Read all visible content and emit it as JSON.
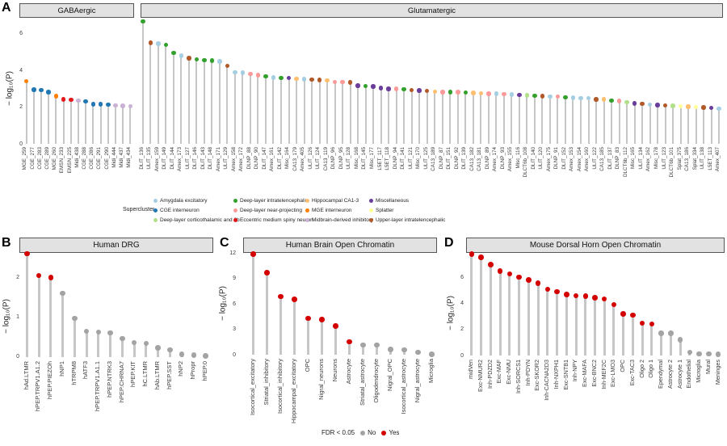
{
  "panels": {
    "A": {
      "letter": "A",
      "facet1": "GABAergic",
      "facet2": "Glutamatergic",
      "ylabel": "− log₁₀(P)"
    },
    "B": {
      "letter": "B",
      "title": "Human DRG",
      "ylabel": "− log₁₀(P)"
    },
    "C": {
      "letter": "C",
      "title": "Human Brain Open Chromatin",
      "ylabel": "− log₁₀(P)"
    },
    "D": {
      "letter": "D",
      "title": "Mouse Dorsal Horn Open Chromatin",
      "ylabel": "− log₁₀(P)"
    }
  },
  "supercluster_legend": {
    "title": "Supercluster",
    "entries": [
      {
        "label": "Amygdala excitatory",
        "color": "#a6cee3"
      },
      {
        "label": "CGE interneuron",
        "color": "#1f78b4"
      },
      {
        "label": "Deep-layer corticothalamic and 6b",
        "color": "#b2df8a"
      },
      {
        "label": "Deep-layer intratelencephalic",
        "color": "#33a02c"
      },
      {
        "label": "Deep-layer near-projecting",
        "color": "#fb9a99"
      },
      {
        "label": "Eccentric medium spiny neuron",
        "color": "#e31a1c"
      },
      {
        "label": "Hippocampal CA1-3",
        "color": "#fdbf6f"
      },
      {
        "label": "MGE interneuron",
        "color": "#ff7f00"
      },
      {
        "label": "Midbrain-derived inhibitory",
        "color": "#cab2d6"
      },
      {
        "label": "Miscellaneous",
        "color": "#6a3d9a"
      },
      {
        "label": "Splatter",
        "color": "#ffff99"
      },
      {
        "label": "Upper-layer intratelencephalic",
        "color": "#b15928"
      }
    ]
  },
  "fdr_legend": {
    "label": "FDR < 0.05",
    "no_label": "No",
    "yes_label": "Yes",
    "no_color": "#a3a3a3",
    "yes_color": "#d40000"
  },
  "chart_data": [
    {
      "id": "A",
      "type": "lollipop",
      "ylabel": "− log₁₀(P)",
      "yticks": [
        0,
        2,
        4,
        6
      ],
      "ylim": [
        0,
        7
      ],
      "grid": false,
      "point_columns": [
        "label",
        "value",
        "supercluster"
      ],
      "facets": [
        {
          "label": "GABAergic",
          "points": [
            [
              "MGE_259",
              3.42,
              "MGE interneuron"
            ],
            [
              "CGE_277",
              2.95,
              "CGE interneuron"
            ],
            [
              "CGE_283",
              2.94,
              "CGE interneuron"
            ],
            [
              "CGE_289",
              2.83,
              "CGE interneuron"
            ],
            [
              "MGE_260",
              2.6,
              "MGE interneuron"
            ],
            [
              "EMSN_233",
              2.43,
              "Eccentric medium spiny neuron"
            ],
            [
              "EMSN_225",
              2.4,
              "Eccentric medium spiny neuron"
            ],
            [
              "Midi_438",
              2.36,
              "Midbrain-derived inhibitory"
            ],
            [
              "CGE_288",
              2.31,
              "CGE interneuron"
            ],
            [
              "CGE_286",
              2.16,
              "CGE interneuron"
            ],
            [
              "CGE_291",
              2.15,
              "CGE interneuron"
            ],
            [
              "CGE_290",
              2.14,
              "CGE interneuron"
            ],
            [
              "Midi_444",
              2.09,
              "Midbrain-derived inhibitory"
            ],
            [
              "Midi_437",
              2.08,
              "Midbrain-derived inhibitory"
            ],
            [
              "Midi_434",
              2.04,
              "Midbrain-derived inhibitory"
            ]
          ]
        },
        {
          "label": "Glutamatergic",
          "points": [
            [
              "DLIT_136",
              6.68,
              "Deep-layer intratelencephalic"
            ],
            [
              "ULIT_135",
              5.5,
              "Upper-layer intratelencephalic"
            ],
            [
              "Amex_159",
              5.47,
              "Amygdala excitatory"
            ],
            [
              "DLIT_149",
              5.4,
              "Deep-layer intratelencephalic"
            ],
            [
              "DLIT_144",
              4.95,
              "Deep-layer intratelencephalic"
            ],
            [
              "Amex_173",
              4.8,
              "Amygdala excitatory"
            ],
            [
              "ULIT_127",
              4.66,
              "Upper-layer intratelencephalic"
            ],
            [
              "DLIT_146",
              4.6,
              "Deep-layer intratelencephalic"
            ],
            [
              "DLIT_143",
              4.56,
              "Deep-layer intratelencephalic"
            ],
            [
              "DLIT_148",
              4.53,
              "Deep-layer intratelencephalic"
            ],
            [
              "Amex_171",
              4.5,
              "Amygdala excitatory"
            ],
            [
              "ULIT_129",
              4.25,
              "Upper-layer intratelencephalic"
            ],
            [
              "Amex_158",
              3.9,
              "Amygdala excitatory"
            ],
            [
              "Amex_172",
              3.87,
              "Amygdala excitatory"
            ],
            [
              "DLNP_88",
              3.82,
              "Deep-layer near-projecting"
            ],
            [
              "DLNP_90",
              3.75,
              "Deep-layer near-projecting"
            ],
            [
              "DLIT_147",
              3.68,
              "Deep-layer intratelencephalic"
            ],
            [
              "Amex_161",
              3.62,
              "Amygdala excitatory"
            ],
            [
              "DLIT_142",
              3.6,
              "Deep-layer intratelencephalic"
            ],
            [
              "Misc_164",
              3.58,
              "Miscellaneous"
            ],
            [
              "CA13_179",
              3.54,
              "Hippocampal CA1-3"
            ],
            [
              "Amex_405",
              3.52,
              "Amygdala excitatory"
            ],
            [
              "ULIT_126",
              3.5,
              "Upper-layer intratelencephalic"
            ],
            [
              "ULIT_124",
              3.48,
              "Upper-layer intratelencephalic"
            ],
            [
              "CA13_119",
              3.45,
              "Hippocampal CA1-3"
            ],
            [
              "DLNP_96",
              3.38,
              "Deep-layer near-projecting"
            ],
            [
              "DLNP_95",
              3.36,
              "Deep-layer near-projecting"
            ],
            [
              "ULIT_128",
              3.34,
              "Upper-layer intratelencephalic"
            ],
            [
              "Misc_168",
              3.18,
              "Miscellaneous"
            ],
            [
              "DLIT_145",
              3.16,
              "Deep-layer intratelencephalic"
            ],
            [
              "Misc_177",
              3.13,
              "Miscellaneous"
            ],
            [
              "L5ET_117",
              3.03,
              "Miscellaneous"
            ],
            [
              "L5ET_118",
              3.0,
              "Miscellaneous"
            ],
            [
              "DLNP_94",
              2.99,
              "Deep-layer near-projecting"
            ],
            [
              "DLIT_141",
              2.98,
              "Deep-layer intratelencephalic"
            ],
            [
              "ULIT_121",
              2.93,
              "Upper-layer intratelencephalic"
            ],
            [
              "Misc_170",
              2.9,
              "Miscellaneous"
            ],
            [
              "ULIT_125",
              2.88,
              "Upper-layer intratelencephalic"
            ],
            [
              "CA13_189",
              2.84,
              "Hippocampal CA1-3"
            ],
            [
              "DLNP_87",
              2.83,
              "Deep-layer near-projecting"
            ],
            [
              "DLIT_151",
              2.82,
              "Deep-layer intratelencephalic"
            ],
            [
              "DLNP_92",
              2.81,
              "Deep-layer near-projecting"
            ],
            [
              "DLIT_139",
              2.8,
              "Deep-layer intratelencephalic"
            ],
            [
              "CA13_182",
              2.78,
              "Hippocampal CA1-3"
            ],
            [
              "CA13_181",
              2.76,
              "Hippocampal CA1-3"
            ],
            [
              "DLNP_89",
              2.74,
              "Deep-layer near-projecting"
            ],
            [
              "Amex_174",
              2.73,
              "Amygdala excitatory"
            ],
            [
              "DLNP_93",
              2.72,
              "Deep-layer near-projecting"
            ],
            [
              "Amex_155",
              2.69,
              "Amygdala excitatory"
            ],
            [
              "Misc_116",
              2.67,
              "Miscellaneous"
            ],
            [
              "DLCT6b_108",
              2.64,
              "Deep-layer corticothalamic and 6b"
            ],
            [
              "DLIT_140",
              2.62,
              "Deep-layer intratelencephalic"
            ],
            [
              "ULIT_120",
              2.61,
              "Upper-layer intratelencephalic"
            ],
            [
              "Amex_175",
              2.58,
              "Amygdala excitatory"
            ],
            [
              "DLNP_91",
              2.57,
              "Deep-layer near-projecting"
            ],
            [
              "DLIT_152",
              2.54,
              "Deep-layer intratelencephalic"
            ],
            [
              "Amex_153",
              2.52,
              "Amygdala excitatory"
            ],
            [
              "Amex_154",
              2.5,
              "Amygdala excitatory"
            ],
            [
              "Amex_160",
              2.49,
              "Amygdala excitatory"
            ],
            [
              "ULIT_122",
              2.43,
              "Upper-layer intratelencephalic"
            ],
            [
              "CA13_185",
              2.42,
              "Hippocampal CA1-3"
            ],
            [
              "DLIT_137",
              2.36,
              "Deep-layer intratelencephalic"
            ],
            [
              "DLNP_83",
              2.33,
              "Deep-layer near-projecting"
            ],
            [
              "DLCT6b_112",
              2.26,
              "Deep-layer corticothalamic and 6b"
            ],
            [
              "Misc_165",
              2.2,
              "Miscellaneous"
            ],
            [
              "ULIT_134",
              2.18,
              "Upper-layer intratelencephalic"
            ],
            [
              "Amex_162",
              2.14,
              "Amygdala excitatory"
            ],
            [
              "Misc_178",
              2.12,
              "Miscellaneous"
            ],
            [
              "ULIT_123",
              2.1,
              "Upper-layer intratelencephalic"
            ],
            [
              "DLCT6b_101",
              2.08,
              "Deep-layer corticothalamic and 6b"
            ],
            [
              "Splat_375",
              2.04,
              "Splatter"
            ],
            [
              "CA13_186",
              2.03,
              "Hippocampal CA1-3"
            ],
            [
              "Splat_334",
              2.0,
              "Splatter"
            ],
            [
              "ULIT_138",
              1.99,
              "Upper-layer intratelencephalic"
            ],
            [
              "L5ET_113",
              1.95,
              "Miscellaneous"
            ],
            [
              "Amex_407",
              1.91,
              "Amygdala excitatory"
            ]
          ]
        }
      ]
    },
    {
      "id": "B",
      "type": "lollipop",
      "title": "Human DRG",
      "ylabel": "− log₁₀(P)",
      "yticks": [
        0,
        1,
        2
      ],
      "ylim": [
        0,
        2.8
      ],
      "grid": false,
      "point_columns": [
        "label",
        "value",
        "fdr"
      ],
      "points": [
        [
          "hAd.LTMR",
          2.6,
          "Yes"
        ],
        [
          "hPEP.TRPV1.A1.2",
          2.05,
          "Yes"
        ],
        [
          "hPEP.PIEZOh",
          2.0,
          "Yes"
        ],
        [
          "hNP1",
          1.6,
          "No"
        ],
        [
          "hTRPM8",
          0.97,
          "No"
        ],
        [
          "hATF3",
          0.64,
          "No"
        ],
        [
          "hPEP.TRPV1.A1.1",
          0.62,
          "No"
        ],
        [
          "hPEP.NTRK3",
          0.6,
          "No"
        ],
        [
          "hPEP.CHRNA7",
          0.46,
          "No"
        ],
        [
          "hPEP.KIT",
          0.36,
          "No"
        ],
        [
          "hC.LTMR",
          0.34,
          "No"
        ],
        [
          "hAb.LTMR",
          0.23,
          "No"
        ],
        [
          "hPEP.SST",
          0.18,
          "No"
        ],
        [
          "hNP2",
          0.06,
          "No"
        ],
        [
          "hPropr",
          0.04,
          "No"
        ],
        [
          "hPEP.0",
          0.02,
          "No"
        ]
      ]
    },
    {
      "id": "C",
      "type": "lollipop",
      "title": "Human Brain Open Chromatin",
      "ylabel": "− log₁₀(P)",
      "yticks": [
        0,
        3,
        6,
        9,
        12
      ],
      "ylim": [
        0,
        12.2
      ],
      "grid": false,
      "point_columns": [
        "label",
        "value",
        "fdr"
      ],
      "points": [
        [
          "Isocortical_excitatory",
          11.9,
          "Yes"
        ],
        [
          "Striatal_inhibitory",
          9.7,
          "Yes"
        ],
        [
          "Isocortical_inhibitory",
          6.9,
          "Yes"
        ],
        [
          "Hippocampal_excitatory",
          6.55,
          "Yes"
        ],
        [
          "OPC",
          4.3,
          "Yes"
        ],
        [
          "Nigral_neurons",
          4.15,
          "Yes"
        ],
        [
          "Neurons",
          3.4,
          "Yes"
        ],
        [
          "Astrocyte",
          1.55,
          "Yes"
        ],
        [
          "Striatal_astrocyte",
          1.15,
          "No"
        ],
        [
          "Oligodendrocyte",
          1.15,
          "No"
        ],
        [
          "Nigral_OPC",
          0.65,
          "No"
        ],
        [
          "Isocortical_astrocyte",
          0.58,
          "No"
        ],
        [
          "Nigral_astrocyte",
          0.33,
          "No"
        ],
        [
          "Microglia",
          0.1,
          "No"
        ]
      ]
    },
    {
      "id": "D",
      "type": "lollipop",
      "title": "Mouse Dorsal Horn Open Chromatin",
      "ylabel": "− log₁₀(P)",
      "yticks": [
        0,
        2,
        4,
        6
      ],
      "ylim": [
        0,
        8
      ],
      "grid": false,
      "point_columns": [
        "label",
        "value",
        "fdr"
      ],
      "points": [
        [
          "midVen",
          7.8,
          "Yes"
        ],
        [
          "Exc-NMUR2",
          7.55,
          "Yes"
        ],
        [
          "Inh-PDZD2",
          7.0,
          "Yes"
        ],
        [
          "Exc-MAF",
          6.5,
          "Yes"
        ],
        [
          "Exc-NMU",
          6.28,
          "Yes"
        ],
        [
          "Inh-SORCS1",
          6.02,
          "Yes"
        ],
        [
          "Inh-PDYN",
          5.82,
          "Yes"
        ],
        [
          "Exc-SKOR2",
          5.55,
          "Yes"
        ],
        [
          "Inh-CACNA2D3",
          5.1,
          "Yes"
        ],
        [
          "Inh-NXPH1",
          4.92,
          "Yes"
        ],
        [
          "Exc-SNTB1",
          4.7,
          "Yes"
        ],
        [
          "Inh-NPY",
          4.6,
          "Yes"
        ],
        [
          "Exc-MAFA",
          4.58,
          "Yes"
        ],
        [
          "Exc-BNC2",
          4.45,
          "Yes"
        ],
        [
          "Inh-MEF2C",
          4.35,
          "Yes"
        ],
        [
          "Exc-LMO3",
          3.92,
          "Yes"
        ],
        [
          "OPC",
          3.2,
          "Yes"
        ],
        [
          "Exc-TAC3",
          3.1,
          "Yes"
        ],
        [
          "Oligo 2",
          2.47,
          "Yes"
        ],
        [
          "Oligo 1",
          2.42,
          "Yes"
        ],
        [
          "Ependymal",
          1.7,
          "No"
        ],
        [
          "Astrocyte 2",
          1.7,
          "No"
        ],
        [
          "Astrocyte 1",
          1.2,
          "No"
        ],
        [
          "Endothelial",
          0.25,
          "No"
        ],
        [
          "Microglia",
          0.12,
          "No"
        ],
        [
          "Mural",
          0.12,
          "No"
        ],
        [
          "Meninges",
          0.08,
          "No"
        ]
      ]
    }
  ]
}
